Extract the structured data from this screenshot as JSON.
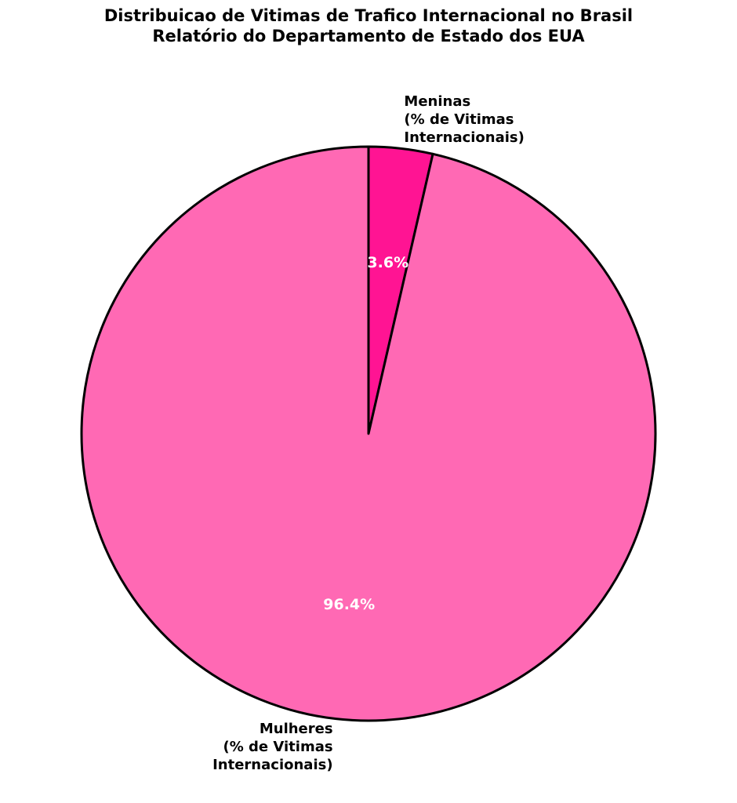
{
  "chart_data": {
    "type": "pie",
    "title": "Distribuicao de Vitimas de Trafico Internacional no Brasil\nRelatório do Departamento de Estado dos EUA",
    "categories": [
      "Meninas\n(% de Vitimas\nInternacionais)",
      "Mulheres\n(% de Vitimas\nInternacionais)"
    ],
    "values": [
      3.6,
      96.4
    ],
    "value_labels": [
      "3.6%",
      "96.4%"
    ],
    "colors": [
      "#ff1493",
      "#ff69b4"
    ]
  }
}
